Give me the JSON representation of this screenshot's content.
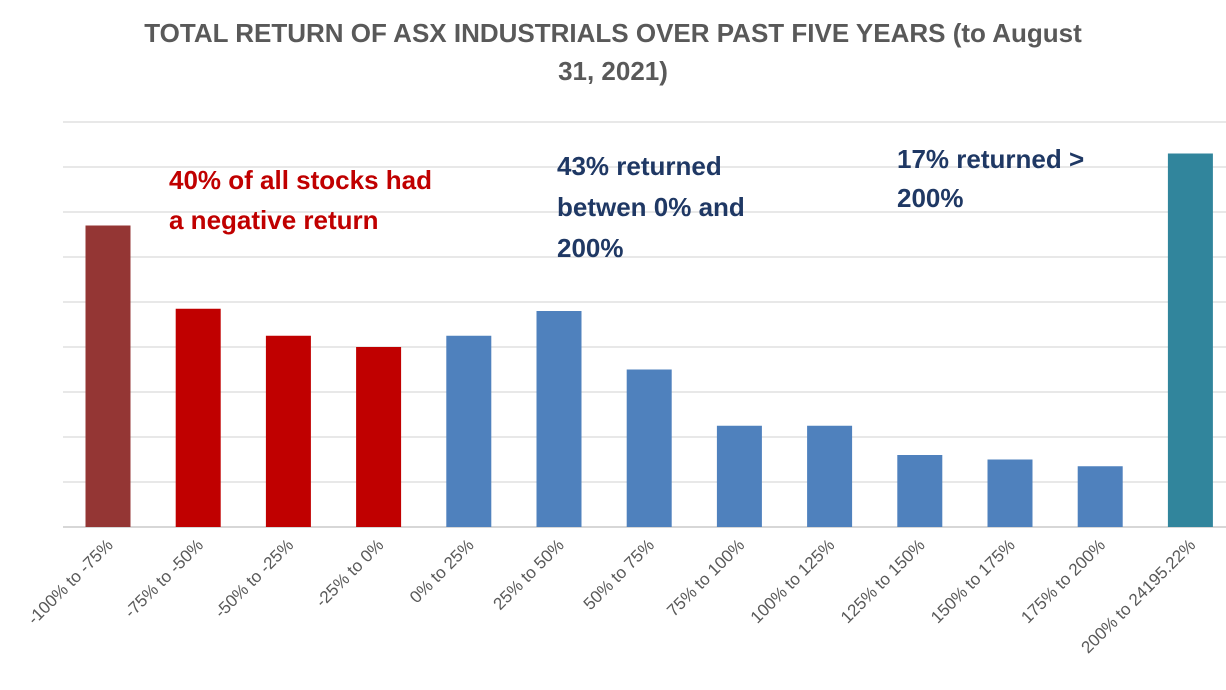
{
  "chart_data": {
    "type": "bar",
    "title_lines": [
      "TOTAL RETURN OF ASX INDUSTRIALS OVER PAST FIVE YEARS (to August",
      "31, 2021)"
    ],
    "xlabel": "",
    "ylabel": "",
    "y_axis_labels_visible": false,
    "grid": true,
    "categories": [
      "-100% to -75%",
      "-75% to -50%",
      "-50% to -25%",
      "-25% to 0%",
      "0% to 25%",
      "25% to 50%",
      "50% to 75%",
      "75% to 100%",
      "100% to 125%",
      "125% to 150%",
      "150% to 175%",
      "175% to 200%",
      "200% to 24195.22%"
    ],
    "values": [
      6.7,
      4.85,
      4.25,
      4.0,
      4.25,
      4.8,
      3.5,
      2.25,
      2.25,
      1.6,
      1.5,
      1.35,
      8.3
    ],
    "ylim": [
      0,
      9
    ],
    "bar_colors": [
      "#943634",
      "#c00000",
      "#c00000",
      "#c00000",
      "#4f81bd",
      "#4f81bd",
      "#4f81bd",
      "#4f81bd",
      "#4f81bd",
      "#4f81bd",
      "#4f81bd",
      "#4f81bd",
      "#31859c"
    ],
    "annotations": [
      {
        "lines": [
          "40% of all stocks had",
          "a negative return"
        ],
        "color": "#c00000"
      },
      {
        "lines": [
          "43% returned",
          "betwen 0% and",
          "200%"
        ],
        "color": "#1f3864"
      },
      {
        "lines": [
          "17% returned >",
          "200%"
        ],
        "color": "#1f3864"
      }
    ]
  }
}
